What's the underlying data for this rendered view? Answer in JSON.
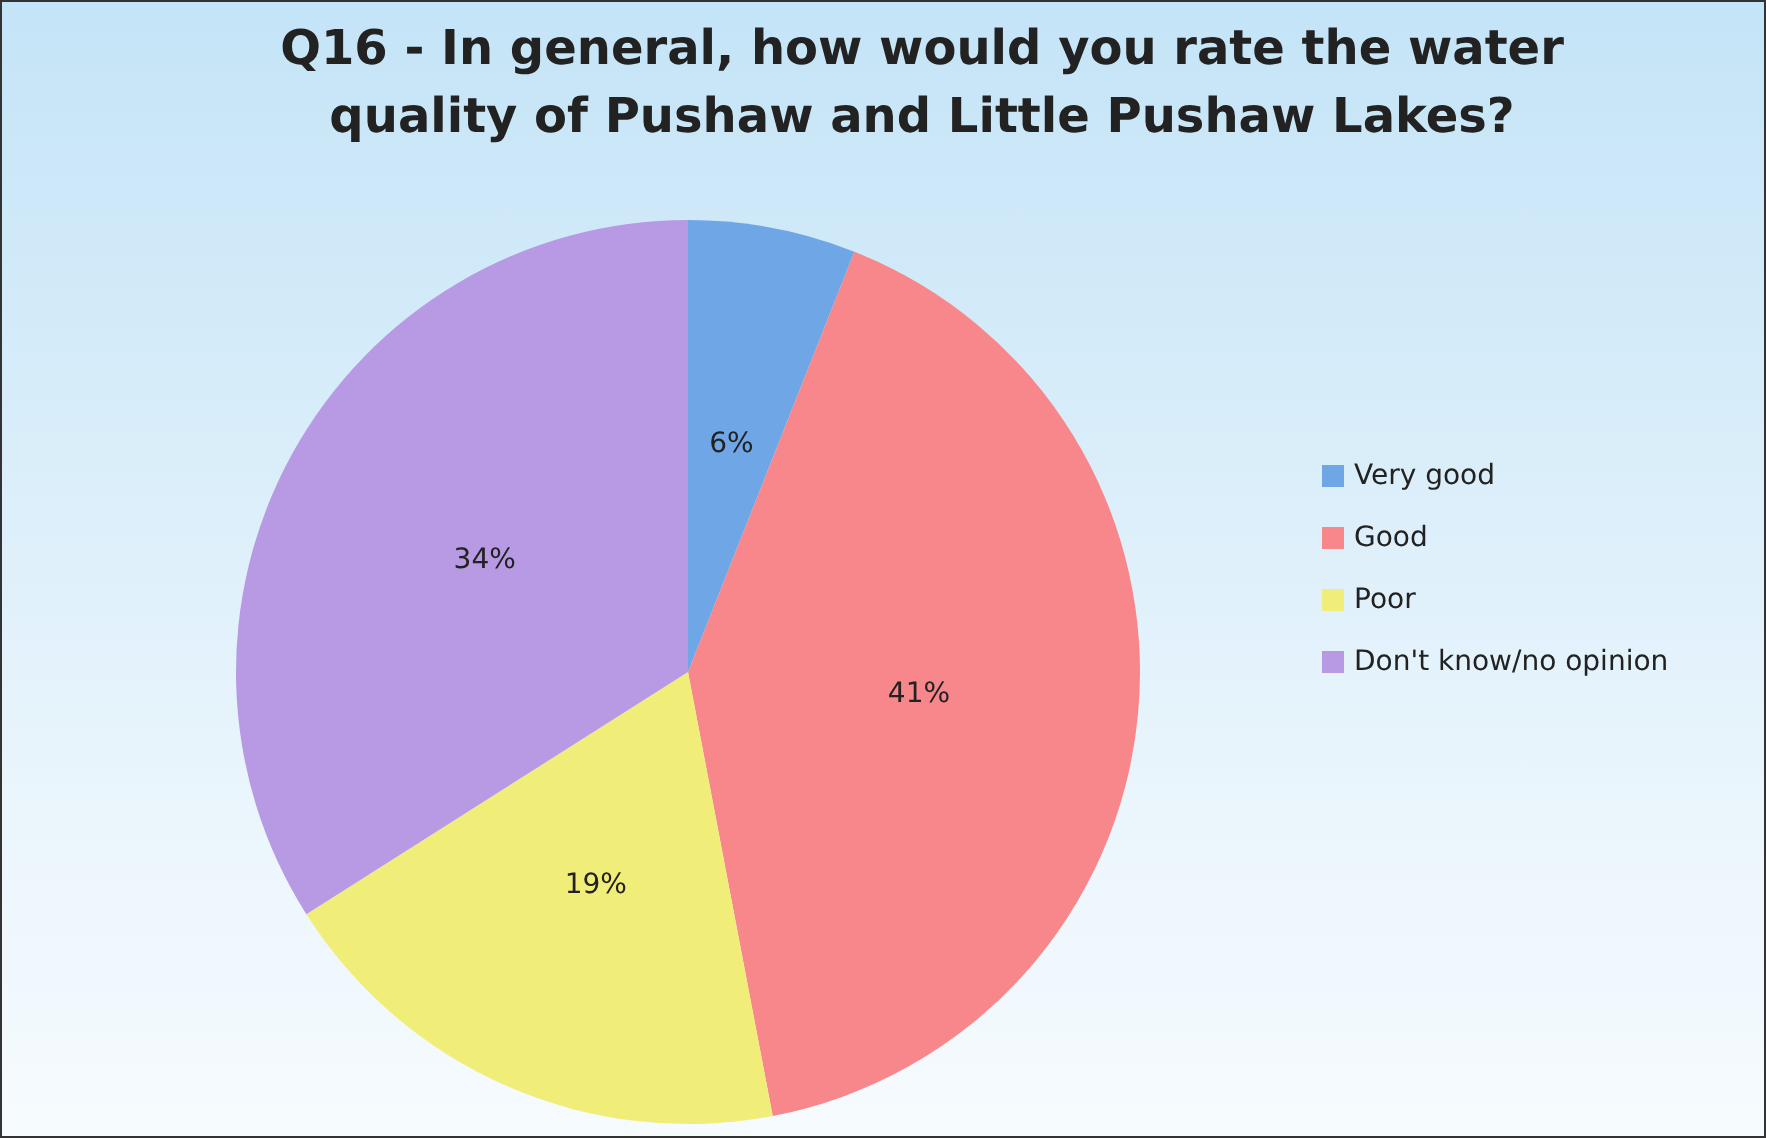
{
  "chart_data": {
    "type": "pie",
    "title": "Q16 - In general, how would you rate the water quality of Pushaw and Little Pushaw Lakes?",
    "categories": [
      "Very good",
      "Good",
      "Poor",
      "Don't know/no opinion"
    ],
    "values": [
      6,
      41,
      19,
      34
    ],
    "colors": [
      "#6ea6e6",
      "#f7878b",
      "#f0ee78",
      "#b89ae4"
    ],
    "value_labels": [
      "6%",
      "41%",
      "19%",
      "34%"
    ],
    "legend": "right"
  }
}
